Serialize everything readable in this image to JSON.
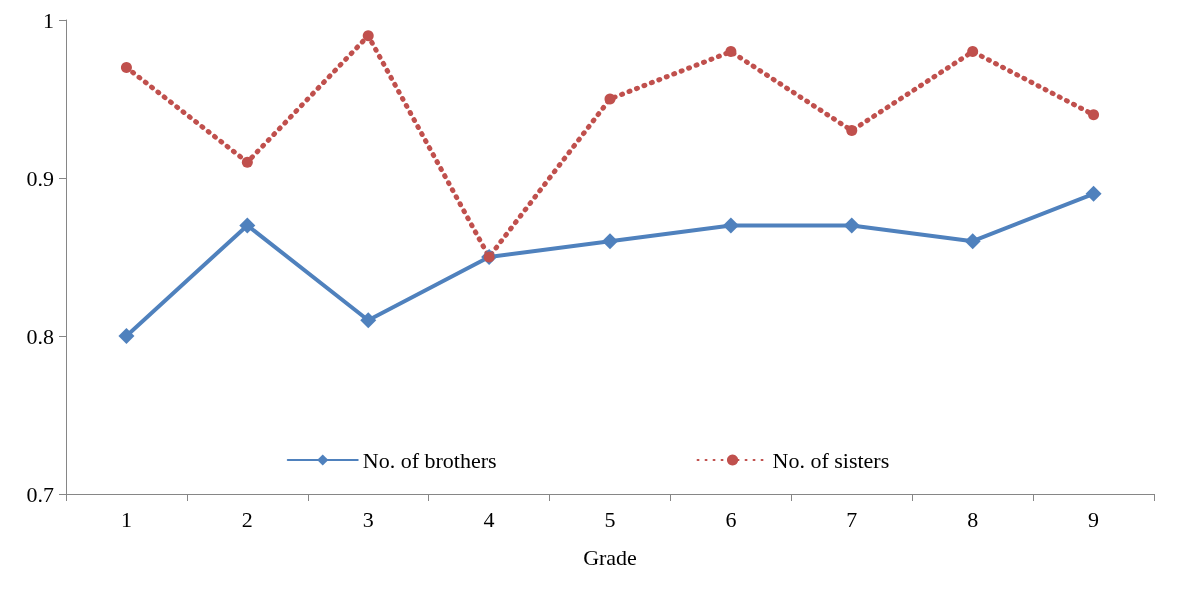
{
  "chart_data": {
    "type": "line",
    "xlabel": "Grade",
    "categories": [
      "1",
      "2",
      "3",
      "4",
      "5",
      "6",
      "7",
      "8",
      "9"
    ],
    "series": [
      {
        "name": "No. of brothers",
        "color": "#4f81bd",
        "marker": "diamond",
        "line_style": "solid",
        "values": [
          0.8,
          0.87,
          0.81,
          0.85,
          0.86,
          0.87,
          0.87,
          0.86,
          0.89
        ]
      },
      {
        "name": "No. of sisters",
        "color": "#c0504d",
        "marker": "circle",
        "line_style": "dotted",
        "values": [
          0.97,
          0.91,
          0.99,
          0.85,
          0.95,
          0.98,
          0.93,
          0.98,
          0.94
        ]
      }
    ],
    "ylim": [
      0.7,
      1
    ],
    "yticks": [
      0.7,
      0.8,
      0.9,
      1
    ],
    "grid": false,
    "legend": "bottom"
  }
}
